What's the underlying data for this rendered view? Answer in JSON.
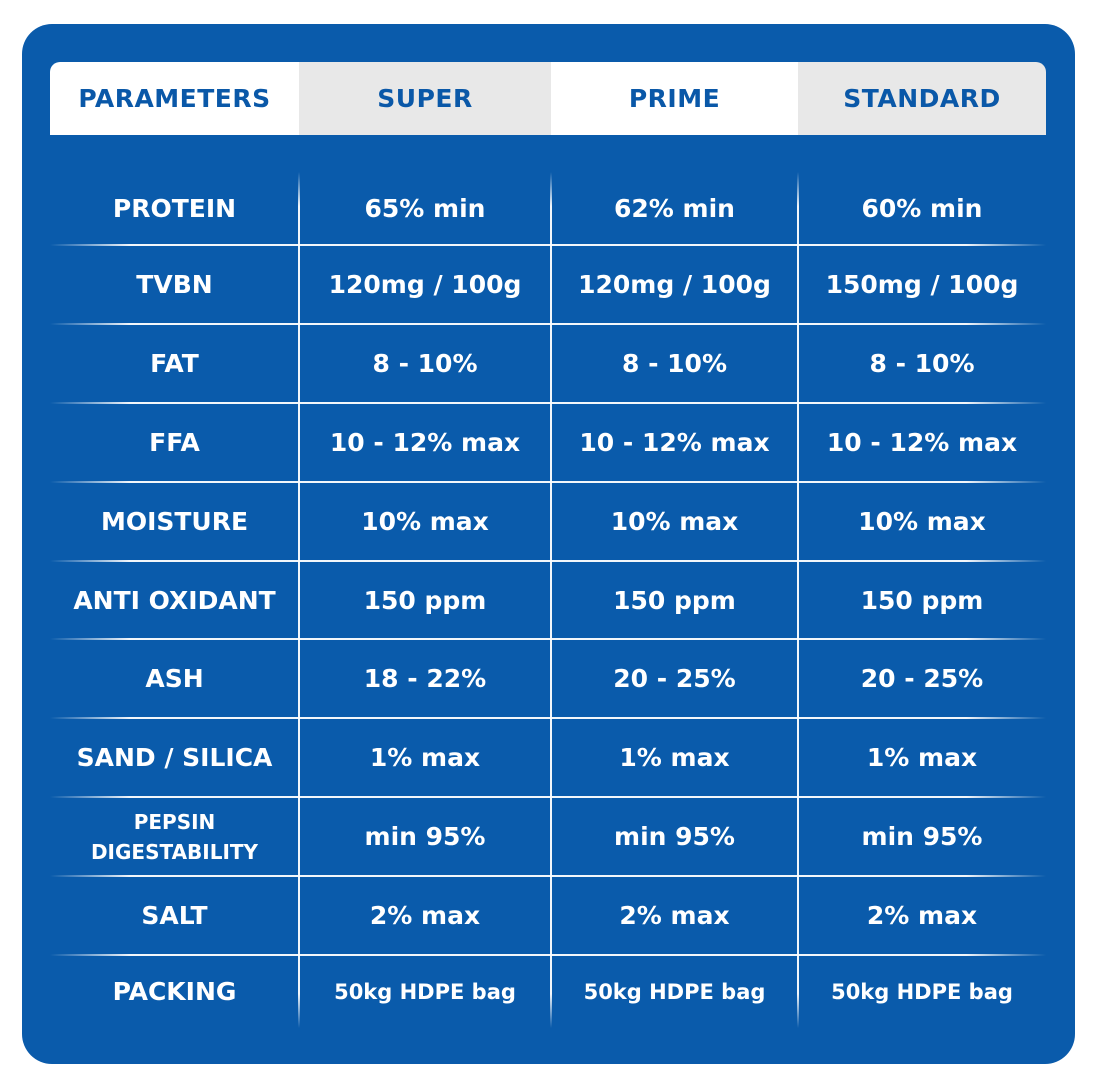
{
  "header": {
    "columns": [
      "PARAMETERS",
      "SUPER",
      "PRIME",
      "STANDARD"
    ]
  },
  "rows": [
    {
      "param": "PROTEIN",
      "super": "65% min",
      "prime": "62% min",
      "standard": "60% min"
    },
    {
      "param": "TVBN",
      "super": "120mg / 100g",
      "prime": "120mg / 100g",
      "standard": "150mg / 100g"
    },
    {
      "param": "FAT",
      "super": "8 - 10%",
      "prime": "8 - 10%",
      "standard": "8 - 10%"
    },
    {
      "param": "FFA",
      "super": "10 - 12% max",
      "prime": "10 - 12% max",
      "standard": "10 - 12% max"
    },
    {
      "param": "MOISTURE",
      "super": "10% max",
      "prime": "10% max",
      "standard": "10% max"
    },
    {
      "param": "ANTI OXIDANT",
      "super": "150 ppm",
      "prime": "150 ppm",
      "standard": "150 ppm"
    },
    {
      "param": "ASH",
      "super": "18 - 22%",
      "prime": "20 - 25%",
      "standard": "20 - 25%"
    },
    {
      "param": "SAND / SILICA",
      "super": "1% max",
      "prime": "1% max",
      "standard": "1% max"
    },
    {
      "param_line1": "PEPSIN",
      "param_line2": "DIGESTABILITY",
      "super": "min 95%",
      "prime": "min 95%",
      "standard": "min 95%"
    },
    {
      "param": "SALT",
      "super": "2% max",
      "prime": "2% max",
      "standard": "2% max"
    },
    {
      "param": "PACKING",
      "super": "50kg HDPE bag",
      "prime": "50kg HDPE bag",
      "standard": "50kg HDPE bag"
    }
  ]
}
